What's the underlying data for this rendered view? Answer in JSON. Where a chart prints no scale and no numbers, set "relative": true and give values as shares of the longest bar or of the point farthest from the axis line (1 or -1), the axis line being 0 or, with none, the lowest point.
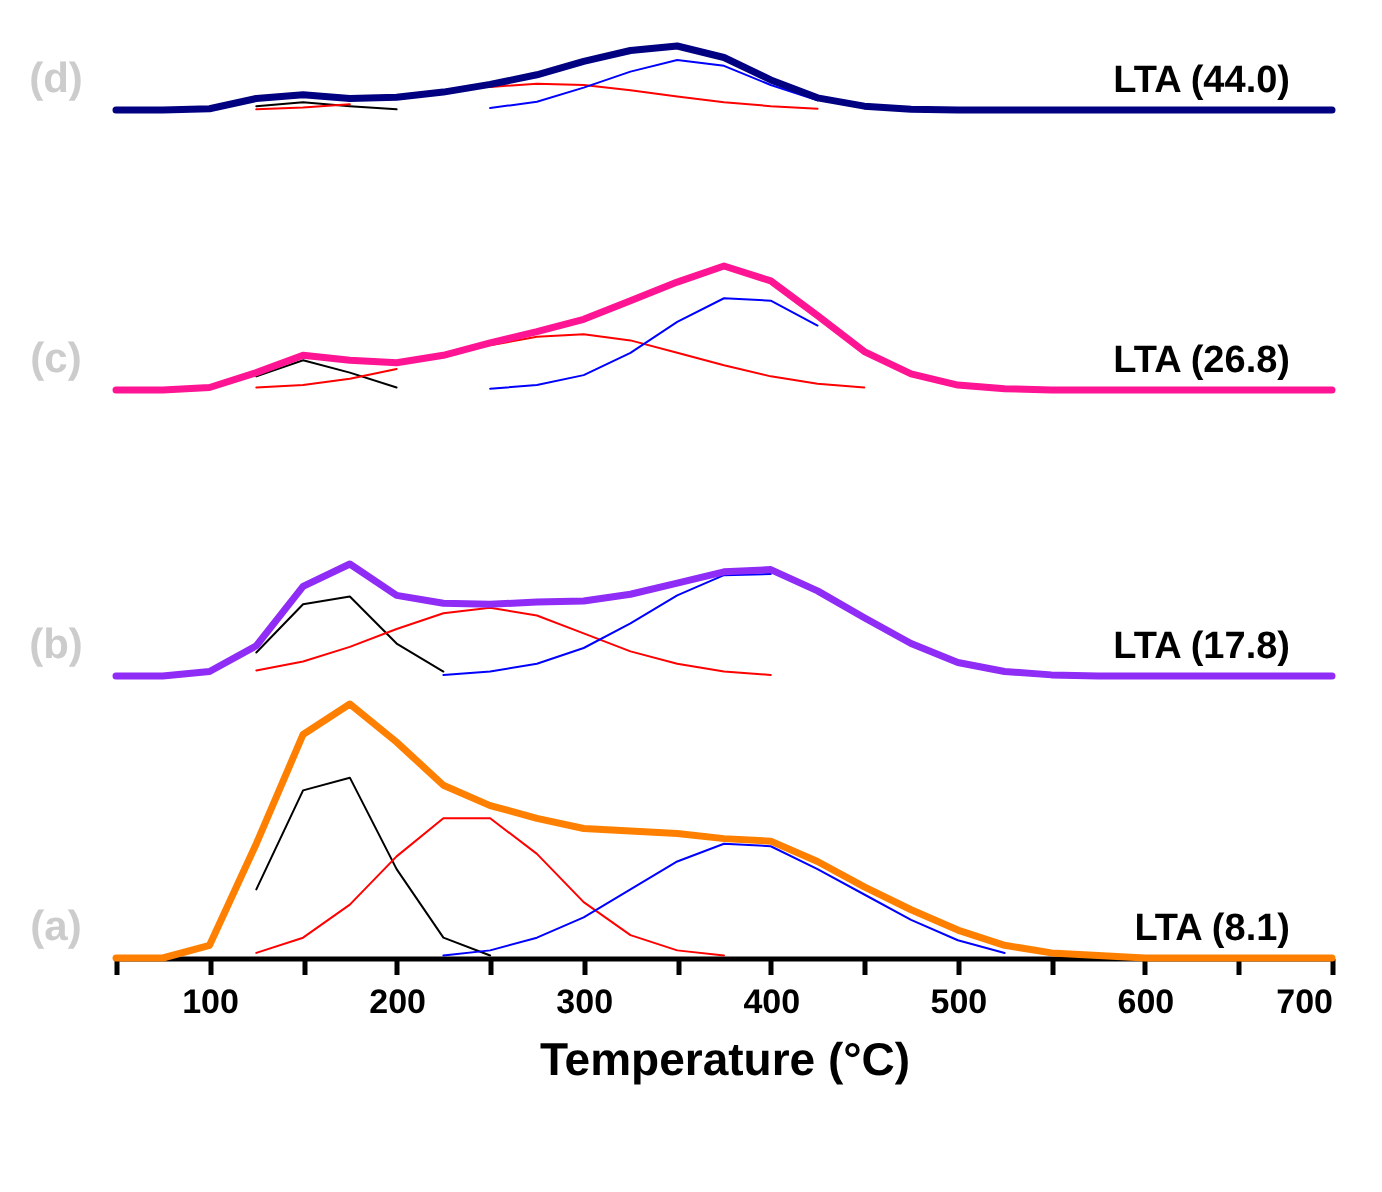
{
  "chart_data": [
    {
      "type": "line",
      "relative": true,
      "tick_labels": false,
      "annotations": [
        "(d)",
        "LTA (44.0)"
      ],
      "categories": [
        null,
        null,
        null,
        null,
        null,
        null,
        null,
        null,
        null,
        null,
        null,
        null,
        null,
        null,
        null,
        null,
        null,
        null,
        null,
        null,
        null,
        null,
        null,
        null,
        null,
        null,
        null
      ],
      "series": [
        {
          "color": "#000080",
          "values": [
            0,
            0,
            0.02,
            0.18,
            0.24,
            0.18,
            0.2,
            0.28,
            0.4,
            0.55,
            0.76,
            0.93,
            1.0,
            0.82,
            0.47,
            0.19,
            0.06,
            0.01,
            0,
            0,
            0,
            0,
            0,
            0,
            0,
            0,
            0
          ]
        },
        {
          "color": "#000000",
          "values": [
            null,
            null,
            null,
            0.06,
            0.12,
            0.06,
            0.01,
            null,
            null,
            null,
            null,
            null,
            null,
            null,
            null,
            null,
            null,
            null,
            null,
            null,
            null,
            null,
            null,
            null,
            null,
            null,
            null
          ]
        },
        {
          "color": "#ff0000",
          "values": [
            null,
            null,
            null,
            0.01,
            0.04,
            0.09,
            null,
            null,
            0.36,
            0.41,
            0.39,
            0.31,
            0.21,
            0.12,
            0.06,
            0.02,
            null,
            null,
            null,
            null,
            null,
            null,
            null,
            null,
            null,
            null,
            null
          ]
        },
        {
          "color": "#0000ff",
          "values": [
            null,
            null,
            null,
            null,
            null,
            null,
            null,
            null,
            0.03,
            0.13,
            0.35,
            0.6,
            0.78,
            0.69,
            0.39,
            0.15,
            null,
            null,
            null,
            null,
            null,
            null,
            null,
            null,
            null,
            null,
            null
          ]
        }
      ]
    },
    {
      "type": "line",
      "relative": true,
      "tick_labels": false,
      "annotations": [
        "(c)",
        "LTA (26.8)"
      ],
      "categories": [
        null,
        null,
        null,
        null,
        null,
        null,
        null,
        null,
        null,
        null,
        null,
        null,
        null,
        null,
        null,
        null,
        null,
        null,
        null,
        null,
        null,
        null,
        null,
        null,
        null,
        null,
        null
      ],
      "series": [
        {
          "color": "#ff1493",
          "values": [
            0,
            0,
            0.02,
            0.14,
            0.28,
            0.24,
            0.22,
            0.28,
            0.38,
            0.47,
            0.57,
            0.72,
            0.87,
            1.0,
            0.88,
            0.6,
            0.31,
            0.13,
            0.04,
            0.01,
            0,
            0,
            0,
            0,
            0,
            0,
            0
          ]
        },
        {
          "color": "#000000",
          "values": [
            null,
            null,
            null,
            0.11,
            0.24,
            0.14,
            0.02,
            null,
            null,
            null,
            null,
            null,
            null,
            null,
            null,
            null,
            null,
            null,
            null,
            null,
            null,
            null,
            null,
            null,
            null,
            null,
            null
          ]
        },
        {
          "color": "#ff0000",
          "values": [
            null,
            null,
            null,
            0.02,
            0.04,
            0.09,
            0.17,
            null,
            0.36,
            0.43,
            0.45,
            0.4,
            0.3,
            0.2,
            0.11,
            0.05,
            0.02,
            null,
            null,
            null,
            null,
            null,
            null,
            null,
            null,
            null,
            null
          ]
        },
        {
          "color": "#0000ff",
          "values": [
            null,
            null,
            null,
            null,
            null,
            null,
            null,
            null,
            0.01,
            0.04,
            0.12,
            0.3,
            0.55,
            0.74,
            0.72,
            0.52,
            null,
            null,
            null,
            null,
            null,
            null,
            null,
            null,
            null,
            null,
            null
          ]
        }
      ]
    },
    {
      "type": "line",
      "relative": true,
      "tick_labels": false,
      "annotations": [
        "(b)",
        "LTA (17.8)"
      ],
      "categories": [
        null,
        null,
        null,
        null,
        null,
        null,
        null,
        null,
        null,
        null,
        null,
        null,
        null,
        null,
        null,
        null,
        null,
        null,
        null,
        null,
        null,
        null,
        null,
        null,
        null,
        null,
        null
      ],
      "series": [
        {
          "color": "#8f2cf5",
          "values": [
            0,
            0,
            0.04,
            0.27,
            0.8,
            1.0,
            0.72,
            0.65,
            0.64,
            0.66,
            0.67,
            0.73,
            0.83,
            0.93,
            0.95,
            0.76,
            0.52,
            0.29,
            0.12,
            0.04,
            0.01,
            0,
            0,
            0,
            0,
            0,
            0
          ]
        },
        {
          "color": "#000000",
          "values": [
            null,
            null,
            null,
            0.21,
            0.64,
            0.71,
            0.29,
            0.04,
            null,
            null,
            null,
            null,
            null,
            null,
            null,
            null,
            null,
            null,
            null,
            null,
            null,
            null,
            null,
            null,
            null,
            null,
            null
          ]
        },
        {
          "color": "#ff0000",
          "values": [
            null,
            null,
            null,
            0.05,
            0.13,
            0.26,
            0.42,
            0.56,
            0.61,
            0.54,
            0.38,
            0.22,
            0.11,
            0.04,
            0.01,
            null,
            null,
            null,
            null,
            null,
            null,
            null,
            null,
            null,
            null,
            null,
            null
          ]
        },
        {
          "color": "#0000ff",
          "values": [
            null,
            null,
            null,
            null,
            null,
            null,
            null,
            0.01,
            0.04,
            0.11,
            0.25,
            0.47,
            0.72,
            0.9,
            0.91,
            null,
            null,
            null,
            null,
            null,
            null,
            null,
            null,
            null,
            null,
            null,
            null
          ]
        }
      ]
    },
    {
      "type": "line",
      "relative": true,
      "tick_labels": "x",
      "xlim": [
        50,
        700
      ],
      "xlabel": "Temperature (°C)",
      "annotations": [
        "(a)",
        "LTA (8.1)"
      ],
      "xticks": [
        {
          "value": 50,
          "label": null
        },
        100,
        {
          "value": 150,
          "label": null
        },
        200,
        {
          "value": 250,
          "label": null
        },
        300,
        {
          "value": 350,
          "label": null
        },
        400,
        {
          "value": 450,
          "label": null
        },
        500,
        {
          "value": 550,
          "label": null
        },
        600,
        {
          "value": 650,
          "label": null
        },
        700
      ],
      "x": [
        50,
        75,
        100,
        125,
        150,
        175,
        200,
        225,
        250,
        275,
        300,
        325,
        350,
        375,
        400,
        425,
        450,
        475,
        500,
        525,
        550,
        575,
        600,
        625,
        650,
        675,
        700
      ],
      "series": [
        {
          "color": "#ff8000",
          "values": [
            0,
            0,
            0.05,
            0.45,
            0.88,
            1.0,
            0.85,
            0.68,
            0.6,
            0.55,
            0.51,
            0.5,
            0.49,
            0.47,
            0.46,
            0.38,
            0.28,
            0.19,
            0.11,
            0.05,
            0.02,
            0.01,
            0,
            0,
            0,
            0,
            0
          ]
        },
        {
          "color": "#000000",
          "values": [
            null,
            null,
            null,
            0.27,
            0.66,
            0.71,
            0.35,
            0.08,
            0.01,
            null,
            null,
            null,
            null,
            null,
            null,
            null,
            null,
            null,
            null,
            null,
            null,
            null,
            null,
            null,
            null,
            null,
            null
          ]
        },
        {
          "color": "#ff0000",
          "values": [
            null,
            null,
            null,
            0.02,
            0.08,
            0.21,
            0.4,
            0.55,
            0.55,
            0.41,
            0.22,
            0.09,
            0.03,
            0.01,
            null,
            null,
            null,
            null,
            null,
            null,
            null,
            null,
            null,
            null,
            null,
            null,
            null
          ]
        },
        {
          "color": "#0000ff",
          "values": [
            null,
            null,
            null,
            null,
            null,
            null,
            null,
            0.01,
            0.03,
            0.08,
            0.16,
            0.27,
            0.38,
            0.45,
            0.44,
            0.35,
            0.25,
            0.15,
            0.07,
            0.02,
            null,
            null,
            null,
            null,
            null,
            null,
            null
          ]
        }
      ]
    }
  ]
}
